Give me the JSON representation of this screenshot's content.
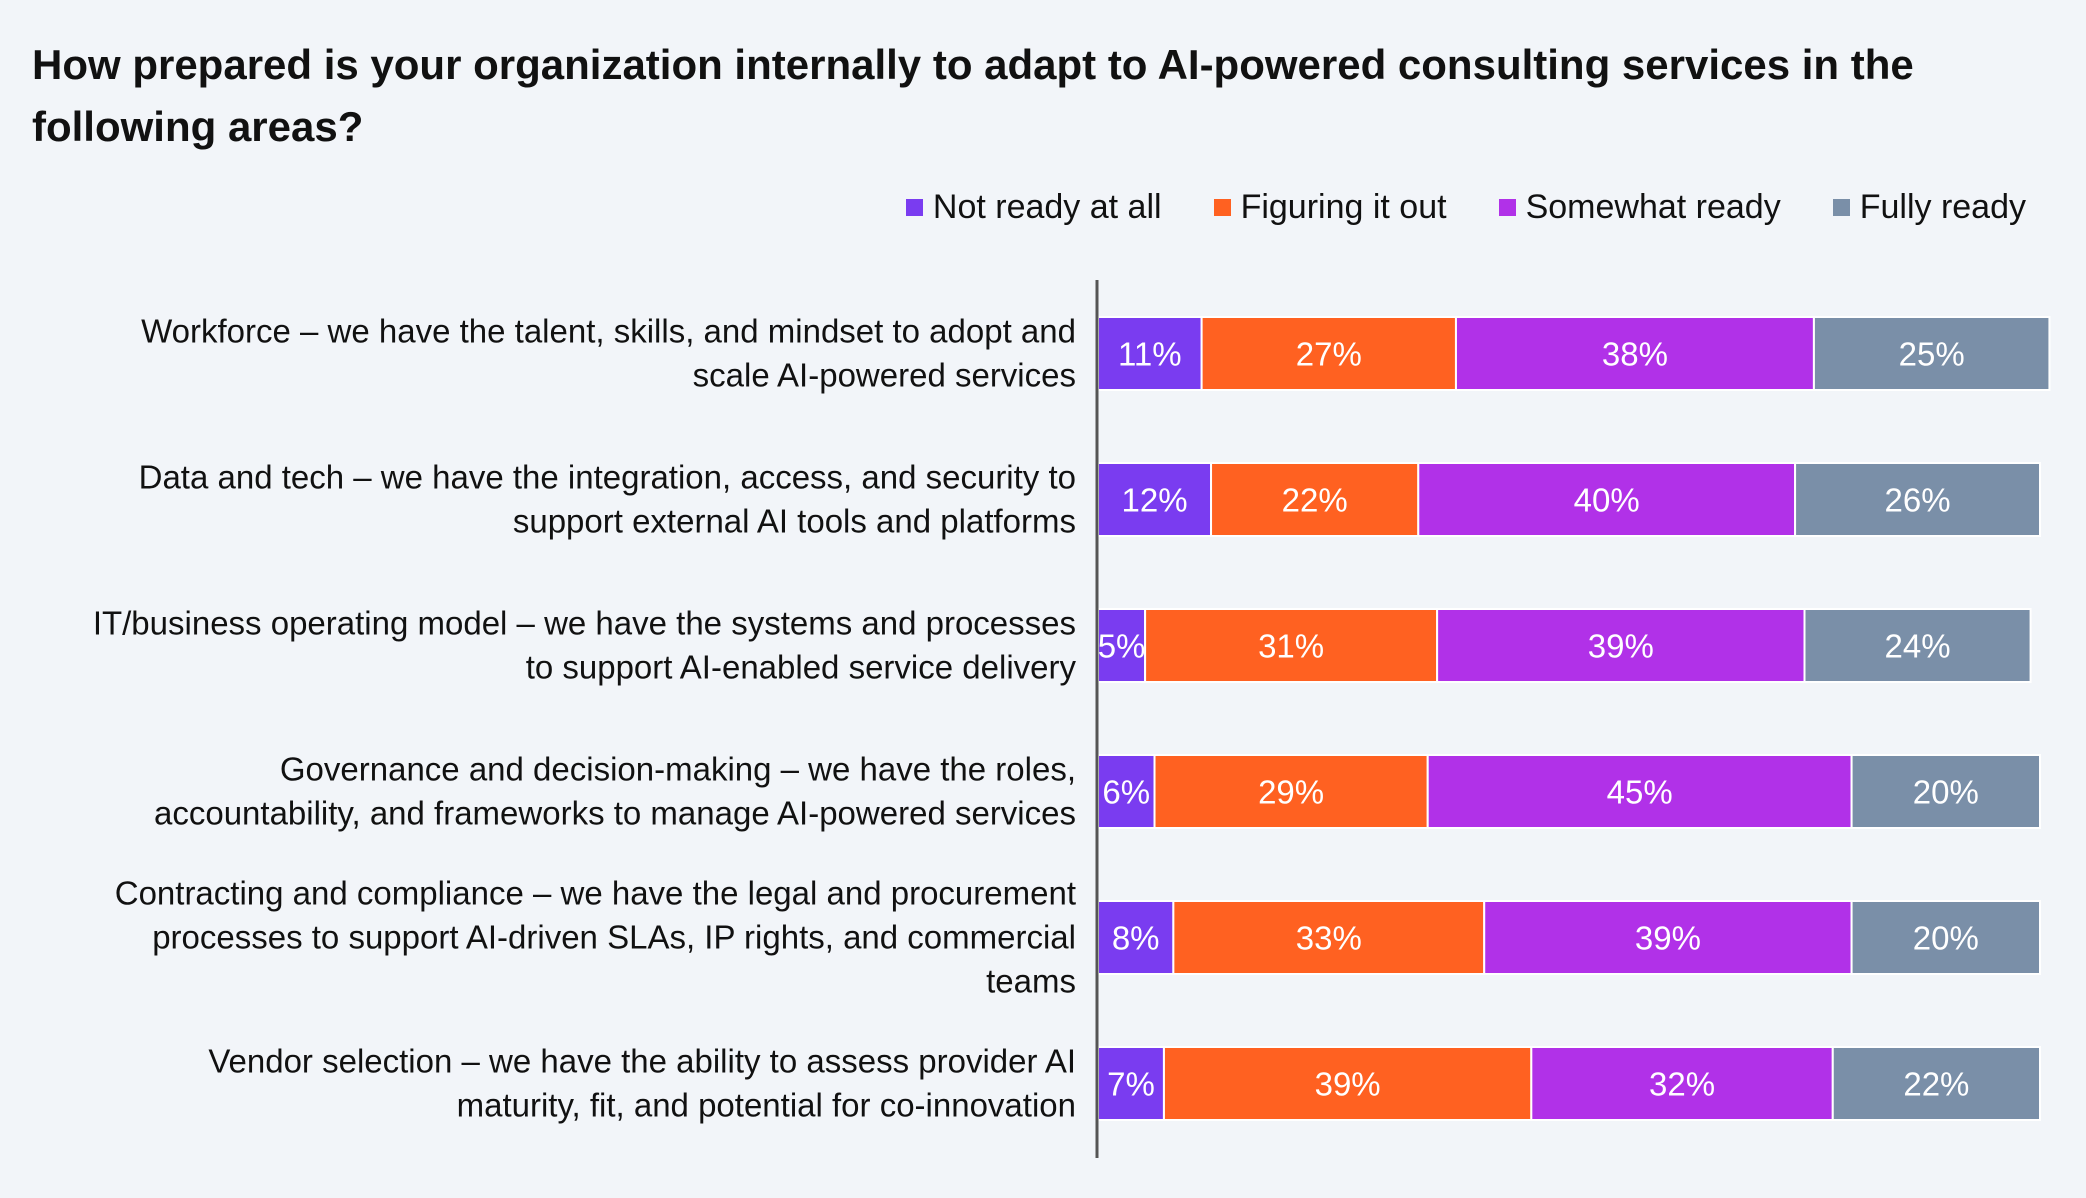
{
  "chart_data": {
    "type": "bar",
    "orientation": "horizontal",
    "stacked": true,
    "title": "How prepared is your organization internally to adapt to AI-powered consulting services in the following areas?",
    "xlabel": "",
    "ylabel": "",
    "xlim": [
      0,
      100
    ],
    "grid": false,
    "legend_position": "top-right",
    "categories": [
      [
        "Workforce – we have the talent, skills, and mindset to adopt and",
        "scale AI-powered services"
      ],
      [
        "Data and tech – we have the integration, access, and security to",
        "support external AI tools and platforms"
      ],
      [
        "IT/business operating model – we have the systems and processes",
        "to support AI-enabled service delivery"
      ],
      [
        "Governance and decision-making – we have the roles,",
        "accountability, and frameworks to manage AI-powered services"
      ],
      [
        "Contracting and compliance – we have the legal and procurement",
        "processes to support AI-driven SLAs, IP rights, and commercial",
        "teams"
      ],
      [
        "Vendor selection – we have the ability to assess provider AI",
        "maturity, fit, and potential for co-innovation"
      ]
    ],
    "series": [
      {
        "name": "Not ready at all",
        "color": "#7a3cf0",
        "values": [
          11,
          12,
          5,
          6,
          8,
          7
        ],
        "labels": [
          "11%",
          "12%",
          "5%",
          "6%",
          "8%",
          "7%"
        ]
      },
      {
        "name": "Figuring it out",
        "color": "#ff6121",
        "values": [
          27,
          22,
          31,
          29,
          33,
          39
        ],
        "labels": [
          "27%",
          "22%",
          "31%",
          "29%",
          "33%",
          "39%"
        ]
      },
      {
        "name": "Somewhat ready",
        "color": "#b131e8",
        "values": [
          38,
          40,
          39,
          45,
          39,
          32
        ],
        "labels": [
          "38%",
          "40%",
          "39%",
          "45%",
          "39%",
          "32%"
        ]
      },
      {
        "name": "Fully ready",
        "color": "#7a8fa8",
        "values": [
          25,
          26,
          24,
          20,
          20,
          22
        ],
        "labels": [
          "25%",
          "26%",
          "24%",
          "20%",
          "20%",
          "22%"
        ]
      }
    ]
  }
}
